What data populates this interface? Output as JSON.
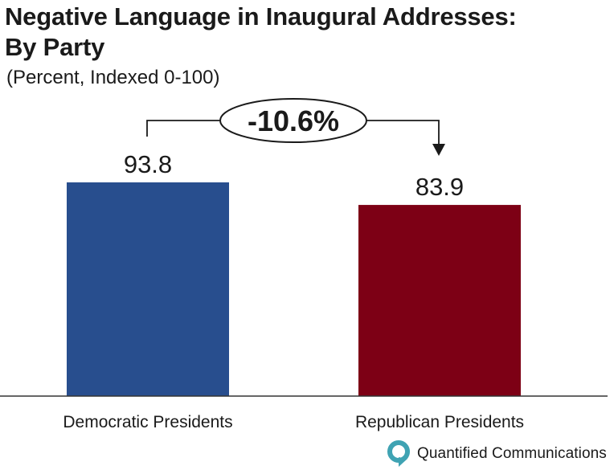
{
  "title_line1": "Negative Language in Inaugural Addresses:",
  "title_line2": "By Party",
  "subtitle": "(Percent, Indexed 0-100)",
  "change_label": "-10.6%",
  "brand": "Quantified Communications",
  "colors": {
    "democratic": "#284e8e",
    "republican": "#7d0015",
    "text": "#1a1a1a",
    "logo_teal": "#3fa3b3"
  },
  "chart_data": {
    "type": "bar",
    "title": "Negative Language in Inaugural Addresses: By Party",
    "subtitle": "(Percent, Indexed 0-100)",
    "categories": [
      "Democratic Presidents",
      "Republican Presidents"
    ],
    "values": [
      93.8,
      83.9
    ],
    "value_labels": [
      "93.8",
      "83.9"
    ],
    "ylim": [
      0,
      100
    ],
    "xlabel": "",
    "ylabel": "",
    "grid": false,
    "annotations": [
      {
        "text": "-10.6%",
        "from": "Democratic Presidents",
        "to": "Republican Presidents"
      }
    ]
  }
}
